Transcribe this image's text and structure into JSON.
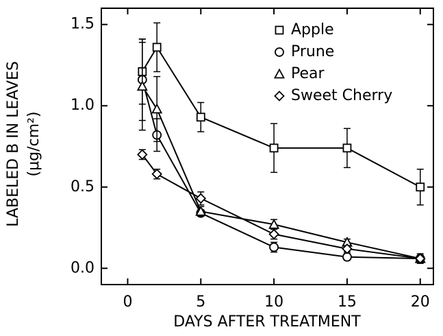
{
  "chart_data": {
    "type": "line",
    "xlabel": "DAYS AFTER TREATMENT",
    "ylabel": [
      "LABELED B IN LEAVES",
      "(μg/cm²)"
    ],
    "x": [
      1,
      2,
      5,
      10,
      15,
      20
    ],
    "series": [
      {
        "name": "Apple",
        "color": "#000000",
        "marker": "square",
        "values": [
          1.21,
          1.36,
          0.93,
          0.74,
          0.74,
          0.5
        ],
        "errors": [
          0.2,
          0.15,
          0.09,
          0.15,
          0.12,
          0.11
        ]
      },
      {
        "name": "Prune",
        "color": "#000000",
        "marker": "circle",
        "values": [
          1.16,
          0.82,
          0.34,
          0.13,
          0.07,
          0.06
        ],
        "errors": [
          0.25,
          0.1,
          0.02,
          0.03,
          0.02,
          0.02
        ]
      },
      {
        "name": "Pear",
        "color": "#000000",
        "marker": "triangle",
        "values": [
          1.12,
          0.98,
          0.35,
          0.27,
          0.16,
          0.06
        ],
        "errors": [
          0.27,
          0.2,
          0.03,
          0.03,
          0.02,
          0.03
        ]
      },
      {
        "name": "Sweet Cherry",
        "color": "#000000",
        "marker": "diamond",
        "values": [
          0.7,
          0.58,
          0.43,
          0.21,
          0.12,
          0.06
        ],
        "errors": [
          0.03,
          0.03,
          0.04,
          0.03,
          0.02,
          0.02
        ]
      }
    ],
    "xlim": [
      -1.8,
      20.9
    ],
    "xticks": [
      0,
      5,
      10,
      15,
      20
    ],
    "ylim": [
      -0.1,
      1.6
    ],
    "yticks": [
      {
        "value": 0,
        "label": "0.0"
      },
      0.5,
      {
        "value": 1,
        "label": "1.0"
      },
      1.5
    ],
    "legend": "upper right",
    "grid": false
  }
}
